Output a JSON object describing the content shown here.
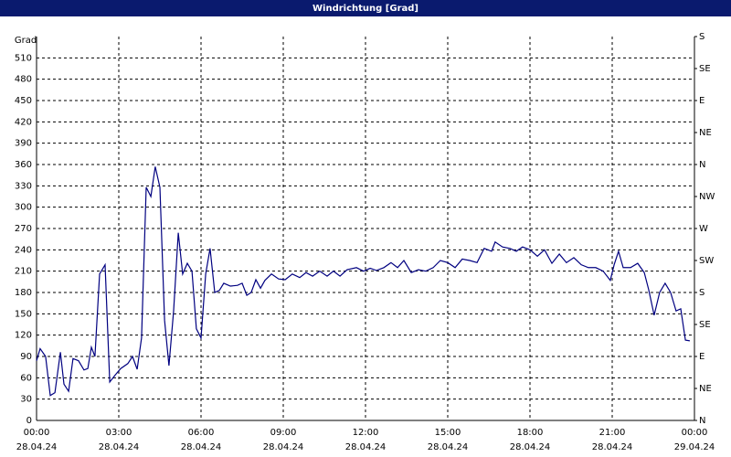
{
  "chart_data": {
    "type": "line",
    "title": "Windrichtung [Grad]",
    "ylabel": "Grad",
    "color": "#000080",
    "grid": true,
    "xlim": [
      0,
      24
    ],
    "xticks": [
      {
        "value": 0,
        "label": "00:00"
      },
      {
        "value": 3,
        "label": "03:00"
      },
      {
        "value": 6,
        "label": "06:00"
      },
      {
        "value": 9,
        "label": "09:00"
      },
      {
        "value": 12,
        "label": "12:00"
      },
      {
        "value": 15,
        "label": "15:00"
      },
      {
        "value": 18,
        "label": "18:00"
      },
      {
        "value": 21,
        "label": "21:00"
      },
      {
        "value": 24,
        "label": "00:00"
      }
    ],
    "xtick_dates": [
      "28.04.24",
      "28.04.24",
      "28.04.24",
      "28.04.24",
      "28.04.24",
      "28.04.24",
      "28.04.24",
      "28.04.24",
      "29.04.24"
    ],
    "ylim": [
      0,
      540
    ],
    "yticks": [
      0,
      30,
      60,
      90,
      120,
      150,
      180,
      210,
      240,
      270,
      300,
      330,
      360,
      390,
      420,
      450,
      480,
      510
    ],
    "y2lim": [
      0,
      540
    ],
    "y2ticks": [
      {
        "value": 0,
        "label": "N"
      },
      {
        "value": 45,
        "label": "NE"
      },
      {
        "value": 90,
        "label": "E"
      },
      {
        "value": 135,
        "label": "SE"
      },
      {
        "value": 180,
        "label": "S"
      },
      {
        "value": 225,
        "label": "SW"
      },
      {
        "value": 270,
        "label": "W"
      },
      {
        "value": 315,
        "label": "NW"
      },
      {
        "value": 360,
        "label": "N"
      },
      {
        "value": 405,
        "label": "NE"
      },
      {
        "value": 450,
        "label": "E"
      },
      {
        "value": 495,
        "label": "SE"
      },
      {
        "value": 540,
        "label": "S"
      }
    ],
    "x": [
      0,
      0.13,
      0.33,
      0.5,
      0.67,
      0.87,
      1,
      1.17,
      1.33,
      1.53,
      1.73,
      1.87,
      2,
      2.13,
      2.3,
      2.5,
      2.67,
      2.87,
      3.07,
      3.33,
      3.5,
      3.67,
      3.83,
      4,
      4.17,
      4.33,
      4.5,
      4.67,
      4.83,
      5,
      5.17,
      5.33,
      5.5,
      5.67,
      5.83,
      6,
      6.17,
      6.33,
      6.5,
      6.67,
      6.83,
      7.07,
      7.33,
      7.5,
      7.67,
      7.83,
      8,
      8.17,
      8.33,
      8.57,
      8.83,
      9.07,
      9.33,
      9.6,
      9.83,
      10.07,
      10.33,
      10.6,
      10.83,
      11.07,
      11.33,
      11.67,
      11.93,
      12.17,
      12.4,
      12.67,
      12.93,
      13.17,
      13.4,
      13.67,
      13.93,
      14.2,
      14.47,
      14.73,
      15,
      15.27,
      15.53,
      15.8,
      16.07,
      16.33,
      16.6,
      16.73,
      17,
      17.27,
      17.5,
      17.73,
      18,
      18.27,
      18.53,
      18.8,
      19.07,
      19.33,
      19.6,
      19.87,
      20.13,
      20.4,
      20.67,
      20.93,
      21.07,
      21.23,
      21.4,
      21.67,
      21.93,
      22.17,
      22.33,
      22.53,
      22.73,
      22.93,
      23.13,
      23.33,
      23.5,
      23.67,
      23.83
    ],
    "values": [
      84,
      101,
      90,
      35,
      39,
      96,
      51,
      41,
      87,
      84,
      71,
      73,
      103,
      90,
      206,
      219,
      54,
      64,
      73,
      80,
      90,
      72,
      116,
      328,
      315,
      357,
      328,
      141,
      77,
      154,
      264,
      206,
      221,
      210,
      129,
      116,
      206,
      242,
      180,
      183,
      193,
      189,
      190,
      193,
      176,
      180,
      198,
      186,
      197,
      206,
      199,
      198,
      206,
      201,
      208,
      203,
      210,
      203,
      210,
      203,
      212,
      215,
      210,
      214,
      211,
      215,
      222,
      215,
      225,
      208,
      212,
      210,
      215,
      225,
      222,
      215,
      227,
      225,
      222,
      242,
      238,
      251,
      244,
      242,
      238,
      244,
      240,
      231,
      240,
      221,
      234,
      222,
      229,
      219,
      215,
      215,
      210,
      197,
      219,
      238,
      215,
      215,
      221,
      208,
      184,
      148,
      180,
      193,
      180,
      154,
      157,
      113,
      112
    ]
  }
}
